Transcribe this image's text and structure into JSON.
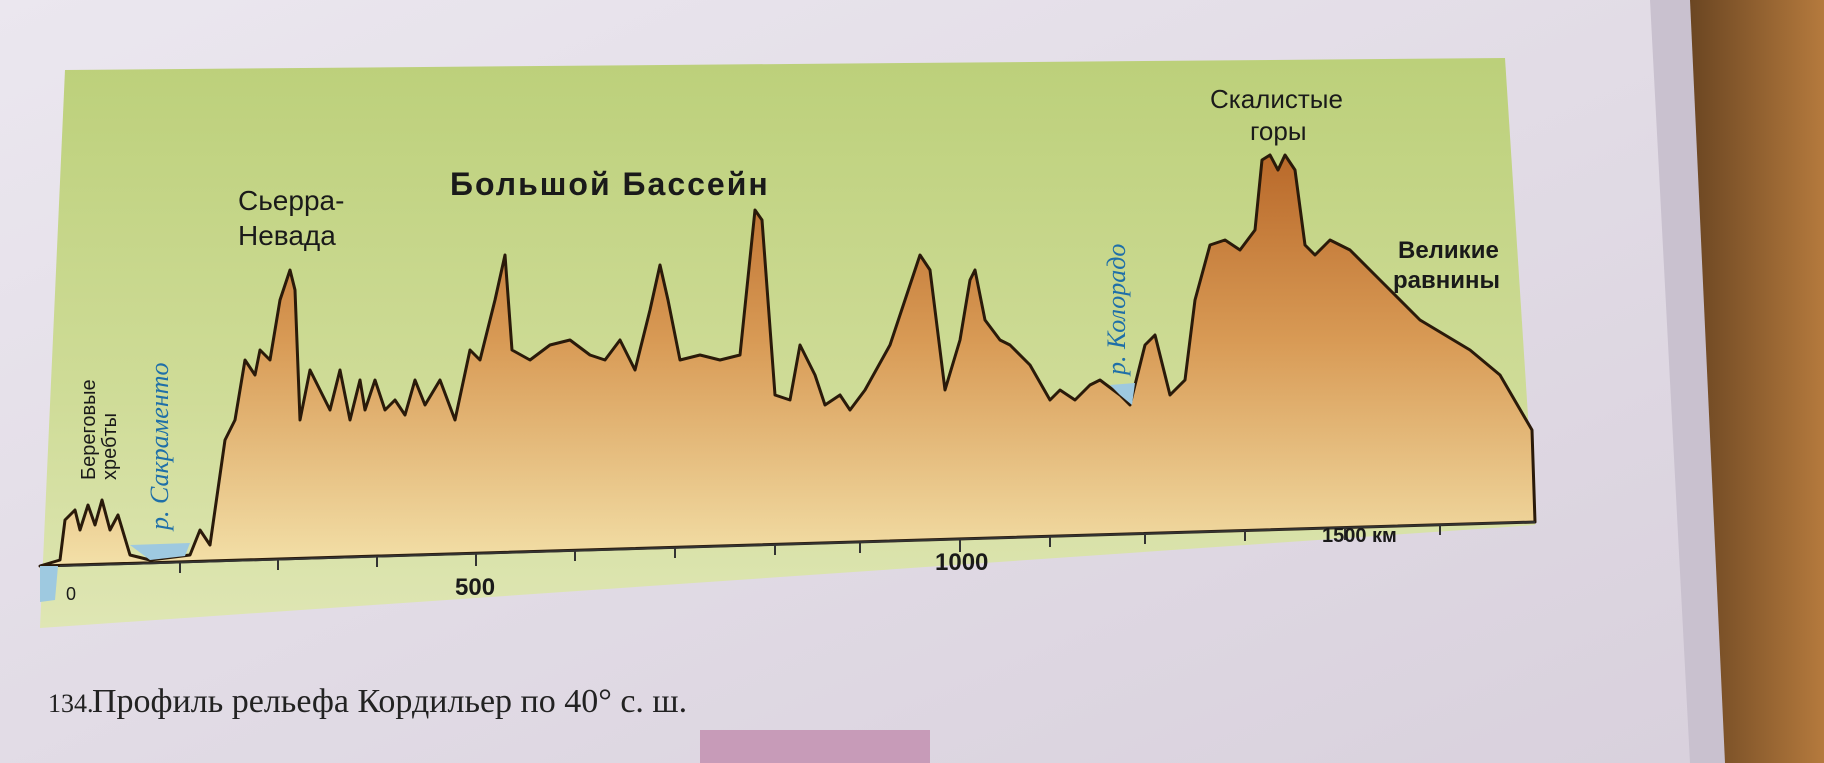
{
  "figure": {
    "labels": {
      "coast_ranges": [
        "Береговые",
        "хребты"
      ],
      "sacramento": "р. Сакраменто",
      "sierra_nevada": [
        "Сьерра-",
        "Невада"
      ],
      "great_basin": "Большой Бассейн",
      "colorado": "р. Колорадо",
      "rocky_mountains": [
        "Скалистые",
        "горы"
      ],
      "great_plains": [
        "Великие",
        "равнины"
      ]
    },
    "x_axis": {
      "ticks": [
        "0",
        "500",
        "1000",
        "1500 км"
      ]
    }
  },
  "caption": {
    "number": "134.",
    "text": "Профиль рельефа Кордильер по 40° с. ш."
  }
}
